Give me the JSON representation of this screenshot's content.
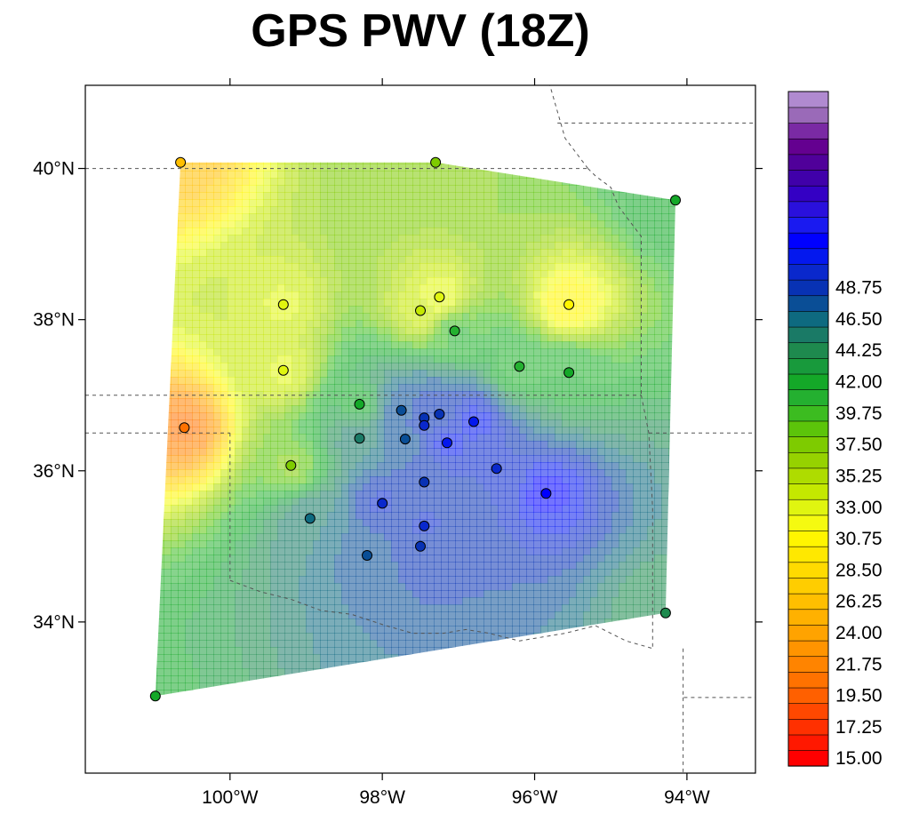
{
  "title": "GPS PWV (18Z)",
  "map": {
    "lon_range": [
      -101.9,
      -93.1
    ],
    "lat_range": [
      32.0,
      41.1
    ],
    "lon_ticks": [
      {
        "lon": -100,
        "label": "100°W"
      },
      {
        "lon": -98,
        "label": "98°W"
      },
      {
        "lon": -96,
        "label": "96°W"
      },
      {
        "lon": -94,
        "label": "94°W"
      }
    ],
    "lat_ticks": [
      {
        "lat": 40,
        "label": "40°N"
      },
      {
        "lat": 38,
        "label": "38°N"
      },
      {
        "lat": 36,
        "label": "36°N"
      },
      {
        "lat": 34,
        "label": "34°N"
      }
    ],
    "boundaries": [
      {
        "name": "kansas-nebraska-border",
        "points": [
          [
            -101.9,
            40.0
          ],
          [
            -95.3,
            40.0
          ]
        ]
      },
      {
        "name": "kansas-oklahoma-border",
        "points": [
          [
            -101.9,
            37.0
          ],
          [
            -94.6,
            37.0
          ]
        ]
      },
      {
        "name": "oklahoma-panhandle-south-border",
        "points": [
          [
            -101.9,
            36.5
          ],
          [
            -100.0,
            36.5
          ]
        ]
      },
      {
        "name": "texas-panhandle-east-border",
        "points": [
          [
            -100.0,
            36.5
          ],
          [
            -100.0,
            34.55
          ]
        ]
      },
      {
        "name": "red-river",
        "points": [
          [
            -100.0,
            34.55
          ],
          [
            -99.6,
            34.4
          ],
          [
            -99.2,
            34.3
          ],
          [
            -98.8,
            34.15
          ],
          [
            -98.4,
            34.1
          ],
          [
            -97.95,
            33.95
          ],
          [
            -97.6,
            33.85
          ],
          [
            -97.2,
            33.85
          ],
          [
            -96.9,
            33.9
          ],
          [
            -96.6,
            33.85
          ],
          [
            -96.2,
            33.75
          ],
          [
            -95.6,
            33.85
          ],
          [
            -95.2,
            33.95
          ],
          [
            -94.8,
            33.75
          ],
          [
            -94.45,
            33.65
          ]
        ]
      },
      {
        "name": "arkansas-oklahoma-border",
        "points": [
          [
            -94.6,
            37.0
          ],
          [
            -94.5,
            36.5
          ],
          [
            -94.45,
            35.5
          ],
          [
            -94.45,
            33.65
          ]
        ]
      },
      {
        "name": "missouri-river-kansas",
        "points": [
          [
            -95.3,
            40.0
          ],
          [
            -95.2,
            39.9
          ],
          [
            -95.0,
            39.75
          ],
          [
            -94.9,
            39.5
          ],
          [
            -94.6,
            39.1
          ],
          [
            -94.6,
            37.0
          ]
        ]
      },
      {
        "name": "missouri-river-north",
        "points": [
          [
            -95.3,
            40.0
          ],
          [
            -95.6,
            40.4
          ],
          [
            -95.8,
            41.1
          ]
        ]
      },
      {
        "name": "iowa-missouri-border",
        "points": [
          [
            -95.7,
            40.6
          ],
          [
            -93.1,
            40.6
          ]
        ]
      },
      {
        "name": "missouri-arkansas-border",
        "points": [
          [
            -94.5,
            36.5
          ],
          [
            -93.1,
            36.5
          ]
        ]
      },
      {
        "name": "arkansas-louisiana-border",
        "points": [
          [
            -94.05,
            33.65
          ],
          [
            -94.05,
            33.0
          ],
          [
            -93.1,
            33.0
          ]
        ]
      },
      {
        "name": "texas-louisiana-border",
        "points": [
          [
            -94.05,
            33.0
          ],
          [
            -94.05,
            32.0
          ]
        ]
      }
    ],
    "hull": [
      [
        -100.65,
        40.08
      ],
      [
        -97.3,
        40.08
      ],
      [
        -94.15,
        39.58
      ],
      [
        -94.28,
        34.12
      ],
      [
        -100.98,
        33.02
      ]
    ]
  },
  "stations": [
    {
      "lon": -100.65,
      "lat": 40.08,
      "pwv": 26.5
    },
    {
      "lon": -97.3,
      "lat": 40.08,
      "pwv": 38.0
    },
    {
      "lon": -94.15,
      "lat": 39.58,
      "pwv": 43.0
    },
    {
      "lon": -99.3,
      "lat": 38.2,
      "pwv": 34.0
    },
    {
      "lon": -97.25,
      "lat": 38.3,
      "pwv": 33.0
    },
    {
      "lon": -97.5,
      "lat": 38.12,
      "pwv": 34.5
    },
    {
      "lon": -95.55,
      "lat": 38.2,
      "pwv": 31.0
    },
    {
      "lon": -97.05,
      "lat": 37.85,
      "pwv": 41.0
    },
    {
      "lon": -99.3,
      "lat": 37.33,
      "pwv": 34.0
    },
    {
      "lon": -96.2,
      "lat": 37.38,
      "pwv": 41.5
    },
    {
      "lon": -95.55,
      "lat": 37.3,
      "pwv": 42.0
    },
    {
      "lon": -98.3,
      "lat": 36.88,
      "pwv": 42.5
    },
    {
      "lon": -97.75,
      "lat": 36.8,
      "pwv": 48.5
    },
    {
      "lon": -97.45,
      "lat": 36.7,
      "pwv": 49.0
    },
    {
      "lon": -97.25,
      "lat": 36.75,
      "pwv": 49.5
    },
    {
      "lon": -97.45,
      "lat": 36.6,
      "pwv": 50.0
    },
    {
      "lon": -96.8,
      "lat": 36.65,
      "pwv": 51.5
    },
    {
      "lon": -100.6,
      "lat": 36.57,
      "pwv": 21.5
    },
    {
      "lon": -98.3,
      "lat": 36.43,
      "pwv": 46.0
    },
    {
      "lon": -97.7,
      "lat": 36.42,
      "pwv": 48.0
    },
    {
      "lon": -97.15,
      "lat": 36.37,
      "pwv": 51.5
    },
    {
      "lon": -99.2,
      "lat": 36.07,
      "pwv": 38.5
    },
    {
      "lon": -96.5,
      "lat": 36.03,
      "pwv": 50.0
    },
    {
      "lon": -97.45,
      "lat": 35.85,
      "pwv": 49.5
    },
    {
      "lon": -95.85,
      "lat": 35.7,
      "pwv": 52.5
    },
    {
      "lon": -98.0,
      "lat": 35.57,
      "pwv": 50.0
    },
    {
      "lon": -98.95,
      "lat": 35.37,
      "pwv": 46.5
    },
    {
      "lon": -97.45,
      "lat": 35.27,
      "pwv": 50.0
    },
    {
      "lon": -97.5,
      "lat": 35.0,
      "pwv": 49.5
    },
    {
      "lon": -98.2,
      "lat": 34.88,
      "pwv": 48.0
    },
    {
      "lon": -94.28,
      "lat": 34.12,
      "pwv": 44.5
    },
    {
      "lon": -100.98,
      "lat": 33.02,
      "pwv": 43.0
    }
  ],
  "colorbar": {
    "min": 15.0,
    "step": 1.125,
    "colors": [
      "#ff0000",
      "#ff1800",
      "#ff3000",
      "#ff4800",
      "#ff6000",
      "#ff7200",
      "#ff8400",
      "#ff9400",
      "#ffa300",
      "#ffb100",
      "#ffbf00",
      "#ffcd00",
      "#ffdb00",
      "#ffe800",
      "#fff500",
      "#f5fa10",
      "#e0f510",
      "#c4e800",
      "#aedc00",
      "#96d200",
      "#7ecb00",
      "#5cc40a",
      "#3cbc20",
      "#24b030",
      "#14a828",
      "#189a3c",
      "#1e8a4e",
      "#1a7a66",
      "#0e6a80",
      "#0a4e96",
      "#0832b4",
      "#0a28cc",
      "#0418ee",
      "#0000ff",
      "#1a1af0",
      "#2a10dc",
      "#3400c4",
      "#4000aa",
      "#50009a",
      "#640090",
      "#7a2aa4",
      "#9a6ab8",
      "#b08ad0"
    ],
    "labels": [
      "48.75",
      "46.50",
      "44.25",
      "42.00",
      "39.75",
      "37.50",
      "35.25",
      "33.00",
      "30.75",
      "28.50",
      "26.25",
      "24.00",
      "21.75",
      "19.50",
      "17.25",
      "15.00"
    ]
  }
}
